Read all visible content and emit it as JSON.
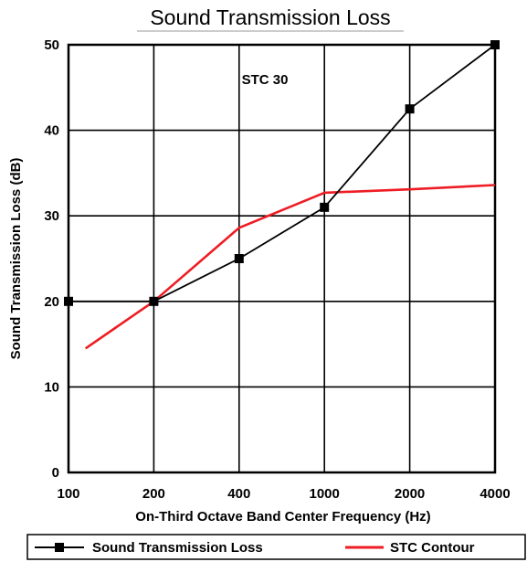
{
  "chart_data": {
    "type": "line",
    "title": "Sound Transmission Loss",
    "xlabel": "On-Third Octave Band Center Frequency (Hz)",
    "ylabel": "Sound Transmission Loss (dB)",
    "categories": [
      "100",
      "200",
      "400",
      "1000",
      "2000",
      "4000"
    ],
    "ylim": [
      0,
      50
    ],
    "yticks": [
      "0",
      "10",
      "20",
      "30",
      "40",
      "50"
    ],
    "grid": true,
    "legend_position": "bottom",
    "annotation": "STC 30",
    "series": [
      {
        "name": "Sound Transmission Loss",
        "color": "#000000",
        "marker": "square",
        "x": [
          0,
          1,
          2,
          3,
          4,
          5
        ],
        "values": [
          20,
          20,
          25,
          31,
          42.5,
          50
        ]
      },
      {
        "name": "STC Contour",
        "color": "#ee1c24",
        "marker": "none",
        "x": [
          0.2,
          1,
          2,
          3,
          4,
          5
        ],
        "values": [
          14.5,
          20,
          28.6,
          32.7,
          33.1,
          33.6
        ]
      }
    ]
  }
}
